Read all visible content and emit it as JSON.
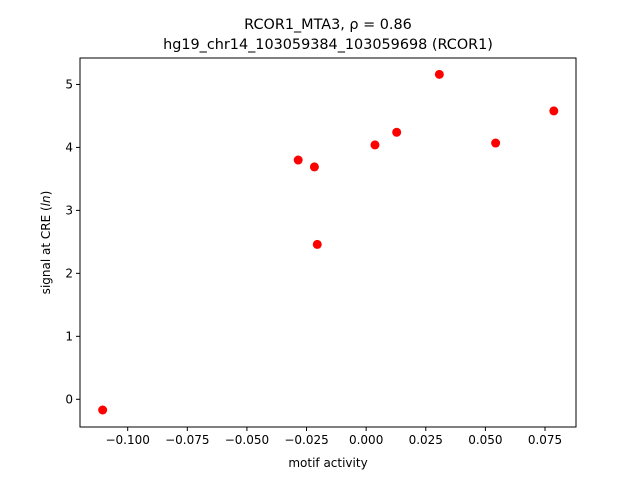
{
  "chart_data": {
    "type": "scatter",
    "title_line1": "RCOR1_MTA3, ρ = 0.86",
    "title_line2": "hg19_chr14_103059384_103059698 (RCOR1)",
    "xlabel": "motif activity",
    "ylabel": "signal at CRE (ln)",
    "ylabel_parts": {
      "pre": "signal at CRE (",
      "italic": "ln",
      "post": ")"
    },
    "xlim": [
      -0.12,
      0.088
    ],
    "ylim": [
      -0.44,
      5.42
    ],
    "xticks": [
      -0.1,
      -0.075,
      -0.05,
      -0.025,
      0.0,
      0.025,
      0.05,
      0.075
    ],
    "xtick_labels": [
      "−0.100",
      "−0.075",
      "−0.050",
      "−0.025",
      "0.000",
      "0.025",
      "0.050",
      "0.075"
    ],
    "yticks": [
      0,
      1,
      2,
      3,
      4,
      5
    ],
    "ytick_labels": [
      "0",
      "1",
      "2",
      "3",
      "4",
      "5"
    ],
    "grid": false,
    "point_color": "#ff0000",
    "points": [
      {
        "x": -0.1105,
        "y": -0.17
      },
      {
        "x": -0.0285,
        "y": 3.8
      },
      {
        "x": -0.0217,
        "y": 3.69
      },
      {
        "x": -0.0205,
        "y": 2.46
      },
      {
        "x": 0.0037,
        "y": 4.04
      },
      {
        "x": 0.0128,
        "y": 4.24
      },
      {
        "x": 0.0307,
        "y": 5.16
      },
      {
        "x": 0.0543,
        "y": 4.07
      },
      {
        "x": 0.0787,
        "y": 4.58
      }
    ]
  }
}
